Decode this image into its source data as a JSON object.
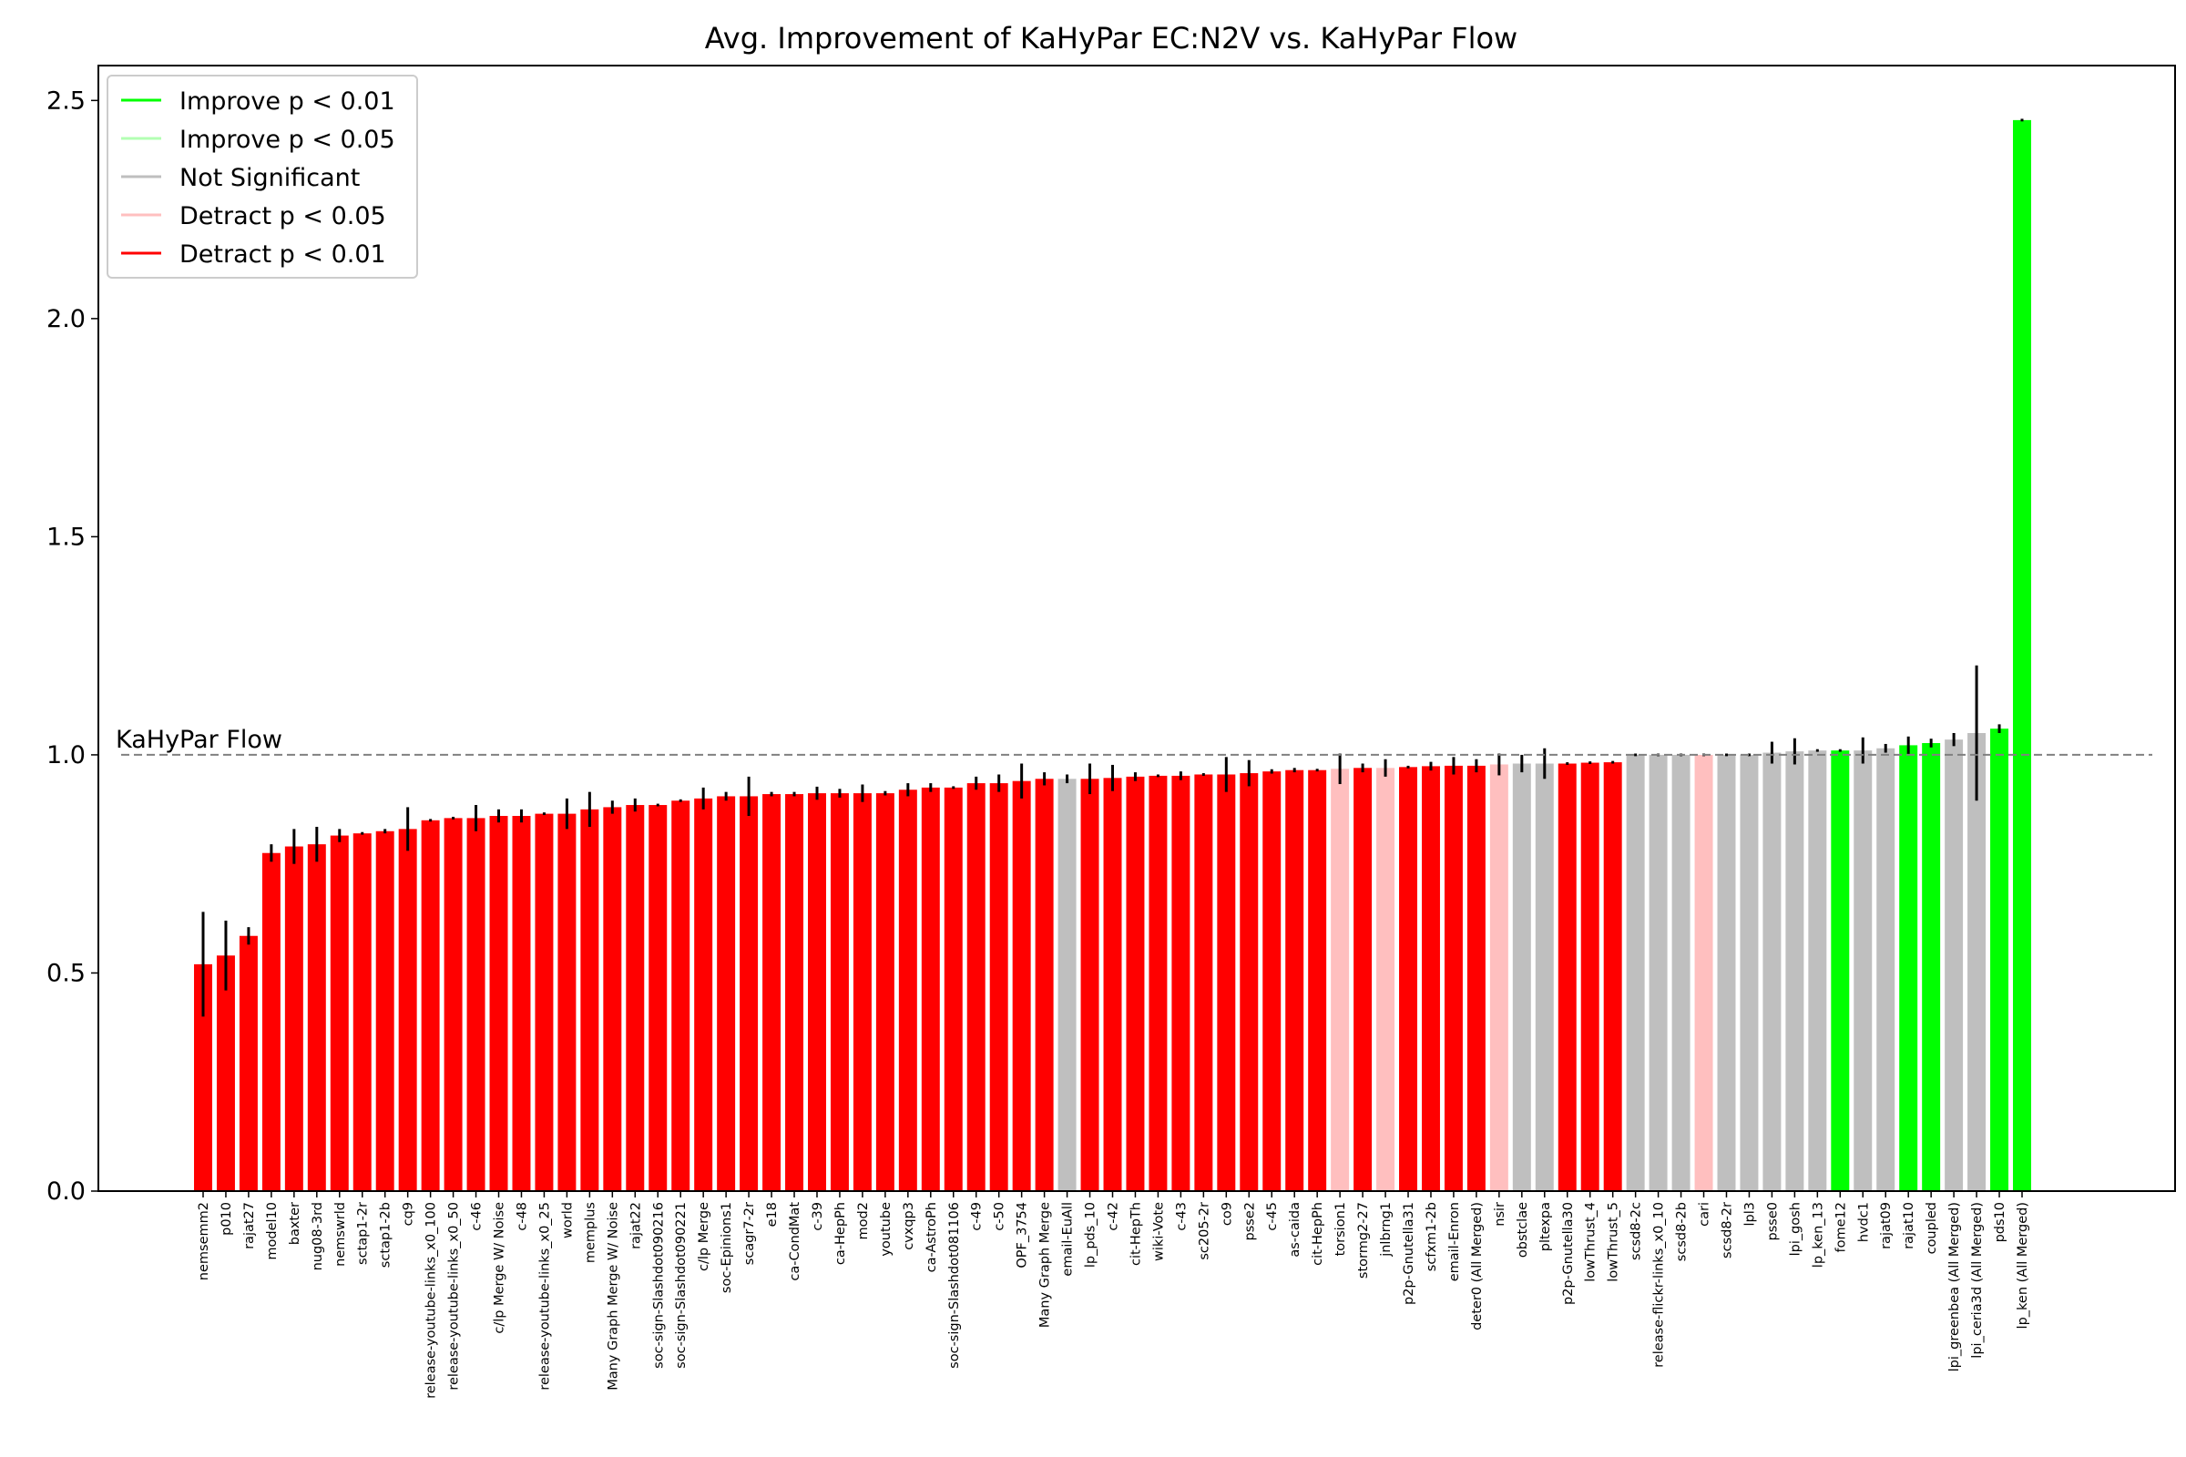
{
  "chart_data": {
    "type": "bar",
    "title": "Avg. Improvement of KaHyPar EC:N2V vs. KaHyPar Flow",
    "xlabel": "",
    "ylabel": "",
    "ylim": [
      0,
      2.58
    ],
    "yticks": [
      "0.0",
      "0.5",
      "1.0",
      "1.5",
      "2.0",
      "2.5"
    ],
    "reference_line": {
      "value": 1.0,
      "label": "KaHyPar Flow",
      "style": "dashed",
      "color": "#808080"
    },
    "grid": false,
    "legend_position": "top-left",
    "legend": [
      {
        "label": "Improve p < 0.01",
        "color": "#00ff00"
      },
      {
        "label": "Improve p < 0.05",
        "color": "#b3ffb3"
      },
      {
        "label": "Not Significant",
        "color": "#bfbfbf"
      },
      {
        "label": "Detract p < 0.05",
        "color": "#ffbfbf"
      },
      {
        "label": "Detract p < 0.01",
        "color": "#ff0000"
      }
    ],
    "significance_colors": {
      "improve_001": "#00ff00",
      "improve_005": "#b3ffb3",
      "not_significant": "#bfbfbf",
      "detract_005": "#ffbfbf",
      "detract_001": "#ff0000"
    },
    "categories": [
      "nemsemm2",
      "p010",
      "rajat27",
      "model10",
      "baxter",
      "nug08-3rd",
      "nemswrld",
      "sctap1-2r",
      "sctap1-2b",
      "cq9",
      "release-youtube-links_x0_100",
      "release-youtube-links_x0_50",
      "c-46",
      "c/lp Merge W/ Noise",
      "c-48",
      "release-youtube-links_x0_25",
      "world",
      "memplus",
      "Many Graph Merge W/ Noise",
      "rajat22",
      "soc-sign-Slashdot090216",
      "soc-sign-Slashdot090221",
      "c/lp Merge",
      "soc-Epinions1",
      "scagr7-2r",
      "e18",
      "ca-CondMat",
      "c-39",
      "ca-HepPh",
      "mod2",
      "youtube",
      "cvxqp3",
      "ca-AstroPh",
      "soc-sign-Slashdot081106",
      "c-49",
      "c-50",
      "OPF_3754",
      "Many Graph Merge",
      "email-EuAll",
      "lp_pds_10",
      "c-42",
      "cit-HepTh",
      "wiki-Vote",
      "c-43",
      "sc205-2r",
      "co9",
      "psse2",
      "c-45",
      "as-caida",
      "cit-HepPh",
      "torsion1",
      "stormg2-27",
      "jnlbrng1",
      "p2p-Gnutella31",
      "scfxm1-2b",
      "email-Enron",
      "deter0 (All Merged)",
      "nsir",
      "obstclae",
      "pltexpa",
      "p2p-Gnutella30",
      "lowThrust_4",
      "lowThrust_5",
      "scsd8-2c",
      "release-flickr-links_x0_10",
      "scsd8-2b",
      "cari",
      "scsd8-2r",
      "lpl3",
      "psse0",
      "lpi_gosh",
      "lp_ken_13",
      "fome12",
      "hvdc1",
      "rajat09",
      "rajat10",
      "coupled",
      "lpi_greenbea (All Merged)",
      "lpi_ceria3d (All Merged)",
      "pds10",
      "lp_ken (All Merged)"
    ],
    "values": [
      0.52,
      0.54,
      0.585,
      0.775,
      0.79,
      0.795,
      0.815,
      0.82,
      0.825,
      0.83,
      0.85,
      0.855,
      0.855,
      0.86,
      0.86,
      0.865,
      0.865,
      0.875,
      0.88,
      0.885,
      0.885,
      0.895,
      0.9,
      0.905,
      0.905,
      0.91,
      0.91,
      0.912,
      0.912,
      0.912,
      0.912,
      0.92,
      0.925,
      0.925,
      0.935,
      0.935,
      0.94,
      0.945,
      0.945,
      0.945,
      0.947,
      0.95,
      0.952,
      0.952,
      0.955,
      0.955,
      0.958,
      0.962,
      0.965,
      0.965,
      0.968,
      0.97,
      0.97,
      0.972,
      0.974,
      0.975,
      0.975,
      0.978,
      0.98,
      0.98,
      0.98,
      0.982,
      0.983,
      1.0,
      1.0,
      1.0,
      1.0,
      1.0,
      1.0,
      1.005,
      1.008,
      1.01,
      1.01,
      1.01,
      1.015,
      1.022,
      1.027,
      1.035,
      1.05,
      1.06,
      2.455
    ],
    "errors": [
      0.12,
      0.08,
      0.02,
      0.02,
      0.04,
      0.04,
      0.015,
      0.003,
      0.005,
      0.05,
      0.003,
      0.003,
      0.03,
      0.015,
      0.015,
      0.003,
      0.035,
      0.04,
      0.015,
      0.015,
      0.003,
      0.003,
      0.025,
      0.01,
      0.045,
      0.005,
      0.005,
      0.015,
      0.01,
      0.02,
      0.005,
      0.015,
      0.01,
      0.003,
      0.015,
      0.02,
      0.04,
      0.015,
      0.01,
      0.035,
      0.03,
      0.01,
      0.003,
      0.01,
      0.003,
      0.04,
      0.03,
      0.005,
      0.005,
      0.003,
      0.035,
      0.01,
      0.02,
      0.003,
      0.01,
      0.02,
      0.015,
      0.025,
      0.02,
      0.035,
      0.003,
      0.003,
      0.003,
      0.003,
      0.003,
      0.003,
      0.003,
      0.003,
      0.003,
      0.025,
      0.03,
      0.003,
      0.003,
      0.03,
      0.01,
      0.02,
      0.01,
      0.015,
      0.155,
      0.01,
      0.003
    ],
    "significance": [
      "detract_001",
      "detract_001",
      "detract_001",
      "detract_001",
      "detract_001",
      "detract_001",
      "detract_001",
      "detract_001",
      "detract_001",
      "detract_001",
      "detract_001",
      "detract_001",
      "detract_001",
      "detract_001",
      "detract_001",
      "detract_001",
      "detract_001",
      "detract_001",
      "detract_001",
      "detract_001",
      "detract_001",
      "detract_001",
      "detract_001",
      "detract_001",
      "detract_001",
      "detract_001",
      "detract_001",
      "detract_001",
      "detract_001",
      "detract_001",
      "detract_001",
      "detract_001",
      "detract_001",
      "detract_001",
      "detract_001",
      "detract_001",
      "detract_001",
      "detract_001",
      "not_significant",
      "detract_001",
      "detract_001",
      "detract_001",
      "detract_001",
      "detract_001",
      "detract_001",
      "detract_001",
      "detract_001",
      "detract_001",
      "detract_001",
      "detract_001",
      "detract_005",
      "detract_001",
      "detract_005",
      "detract_001",
      "detract_001",
      "detract_001",
      "detract_001",
      "detract_005",
      "not_significant",
      "not_significant",
      "detract_001",
      "detract_001",
      "detract_001",
      "not_significant",
      "not_significant",
      "not_significant",
      "detract_005",
      "not_significant",
      "not_significant",
      "not_significant",
      "not_significant",
      "not_significant",
      "improve_001",
      "not_significant",
      "not_significant",
      "improve_001",
      "improve_001",
      "not_significant",
      "not_significant",
      "improve_001",
      "improve_001"
    ]
  }
}
